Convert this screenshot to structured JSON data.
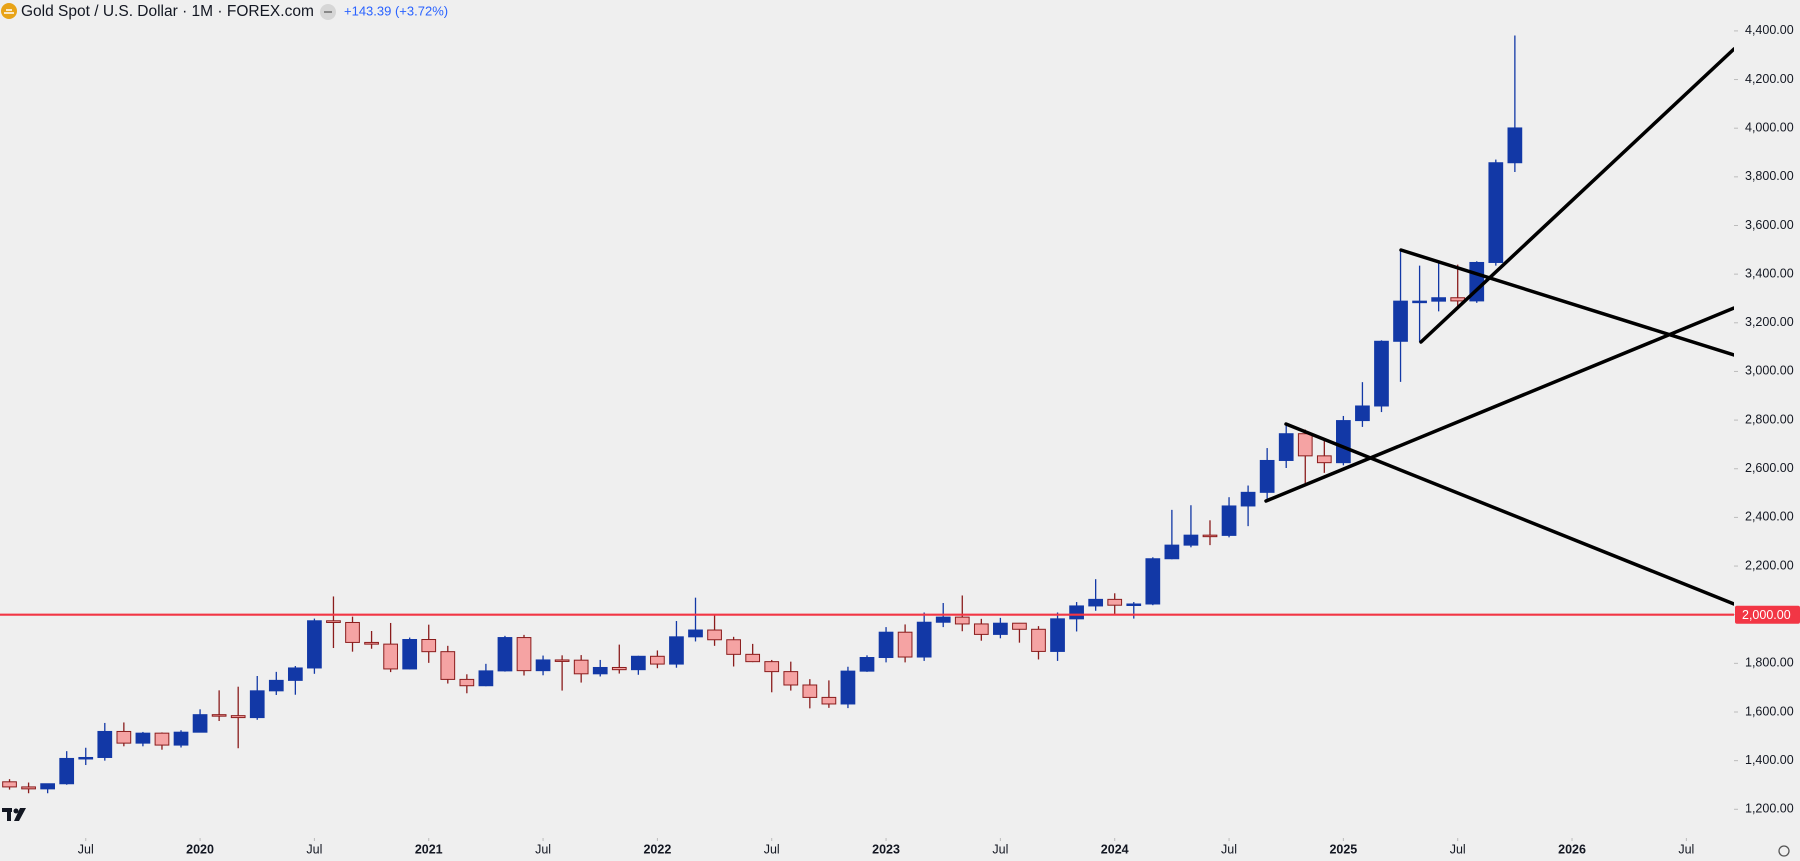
{
  "chart_data": {
    "type": "candlestick",
    "title": "Gold Spot / U.S. Dollar · 1M · FOREX.com",
    "change": "+143.39 (+3.72%)",
    "x": [
      "2019-03",
      "2019-04",
      "2019-05",
      "2019-06",
      "2019-07",
      "2019-08",
      "2019-09",
      "2019-10",
      "2019-11",
      "2019-12",
      "2020-01",
      "2020-02",
      "2020-03",
      "2020-04",
      "2020-05",
      "2020-06",
      "2020-07",
      "2020-08",
      "2020-09",
      "2020-10",
      "2020-11",
      "2020-12",
      "2021-01",
      "2021-02",
      "2021-03",
      "2021-04",
      "2021-05",
      "2021-06",
      "2021-07",
      "2021-08",
      "2021-09",
      "2021-10",
      "2021-11",
      "2021-12",
      "2022-01",
      "2022-02",
      "2022-03",
      "2022-04",
      "2022-05",
      "2022-06",
      "2022-07",
      "2022-08",
      "2022-09",
      "2022-10",
      "2022-11",
      "2022-12",
      "2023-01",
      "2023-02",
      "2023-03",
      "2023-04",
      "2023-05",
      "2023-06",
      "2023-07",
      "2023-08",
      "2023-09",
      "2023-10",
      "2023-11",
      "2023-12",
      "2024-01",
      "2024-02",
      "2024-03",
      "2024-04",
      "2024-05",
      "2024-06",
      "2024-07",
      "2024-08",
      "2024-09",
      "2024-10",
      "2024-11",
      "2024-12",
      "2025-01",
      "2025-02",
      "2025-03",
      "2025-04",
      "2025-05",
      "2025-06",
      "2025-07",
      "2025-08",
      "2025-09",
      "2025-10"
    ],
    "open": [
      1313,
      1292,
      1284,
      1305,
      1409,
      1413,
      1520,
      1472,
      1513,
      1464,
      1517,
      1589,
      1585,
      1577,
      1687,
      1730,
      1781,
      1975,
      1968,
      1886,
      1879,
      1777,
      1898,
      1848,
      1734,
      1708,
      1769,
      1906,
      1770,
      1814,
      1813,
      1757,
      1783,
      1774,
      1829,
      1797,
      1909,
      1937,
      1897,
      1837,
      1807,
      1766,
      1711,
      1660,
      1633,
      1768,
      1824,
      1928,
      1826,
      1969,
      1990,
      1962,
      1919,
      1965,
      1940,
      1849,
      1983,
      2036,
      2063,
      2039,
      2044,
      2230,
      2286,
      2327,
      2326,
      2447,
      2503,
      2634,
      2744,
      2653,
      2625,
      2798,
      2858,
      3124,
      3289,
      3289,
      3303,
      3290,
      3448,
      3858
    ],
    "high": [
      1324,
      1310,
      1306,
      1439,
      1453,
      1555,
      1557,
      1518,
      1516,
      1525,
      1611,
      1689,
      1704,
      1748,
      1765,
      1789,
      1984,
      2075,
      1992,
      1933,
      1966,
      1906,
      1959,
      1872,
      1755,
      1798,
      1913,
      1917,
      1832,
      1833,
      1834,
      1814,
      1877,
      1831,
      1853,
      1974,
      2070,
      1998,
      1909,
      1880,
      1814,
      1807,
      1735,
      1730,
      1786,
      1833,
      1949,
      1960,
      2009,
      2048,
      2079,
      1983,
      1987,
      1966,
      1953,
      2009,
      2052,
      2146,
      2088,
      2052,
      2236,
      2431,
      2450,
      2388,
      2483,
      2531,
      2685,
      2790,
      2761,
      2726,
      2817,
      2956,
      3128,
      3500,
      3435,
      3452,
      3439,
      3453,
      3871,
      4381
    ],
    "low": [
      1281,
      1266,
      1266,
      1301,
      1382,
      1400,
      1459,
      1459,
      1445,
      1454,
      1517,
      1563,
      1451,
      1568,
      1670,
      1671,
      1757,
      1863,
      1848,
      1860,
      1764,
      1775,
      1802,
      1717,
      1677,
      1706,
      1766,
      1750,
      1751,
      1688,
      1721,
      1746,
      1758,
      1753,
      1780,
      1782,
      1890,
      1872,
      1787,
      1805,
      1681,
      1688,
      1615,
      1617,
      1616,
      1765,
      1804,
      1804,
      1810,
      1949,
      1932,
      1893,
      1903,
      1885,
      1816,
      1810,
      1931,
      2016,
      2001,
      1984,
      2039,
      2228,
      2277,
      2286,
      2318,
      2364,
      2471,
      2603,
      2536,
      2583,
      2614,
      2772,
      2833,
      2957,
      3121,
      3247,
      3268,
      3282,
      3435,
      3820
    ],
    "close": [
      1292,
      1284,
      1305,
      1409,
      1413,
      1520,
      1472,
      1513,
      1464,
      1517,
      1589,
      1585,
      1577,
      1687,
      1730,
      1781,
      1975,
      1968,
      1886,
      1879,
      1777,
      1898,
      1848,
      1734,
      1708,
      1769,
      1906,
      1770,
      1814,
      1813,
      1757,
      1783,
      1774,
      1829,
      1797,
      1909,
      1937,
      1897,
      1837,
      1807,
      1766,
      1711,
      1660,
      1633,
      1768,
      1824,
      1928,
      1826,
      1969,
      1990,
      1962,
      1919,
      1965,
      1940,
      1849,
      1983,
      2036,
      2063,
      2039,
      2044,
      2230,
      2286,
      2327,
      2326,
      2447,
      2503,
      2634,
      2744,
      2653,
      2625,
      2798,
      2858,
      3124,
      3289,
      3289,
      3303,
      3290,
      3448,
      3858,
      4001
    ],
    "up_color": "#1238a6",
    "down_color": "#f5a3a3",
    "down_border": "#8a1c1c",
    "xlim": [
      "2019-03",
      "2026-09"
    ],
    "xticks": [
      {
        "value": "2019-07",
        "label": "Jul"
      },
      {
        "value": "2020-01",
        "label": "2020"
      },
      {
        "value": "2020-07",
        "label": "Jul"
      },
      {
        "value": "2021-01",
        "label": "2021"
      },
      {
        "value": "2021-07",
        "label": "Jul"
      },
      {
        "value": "2022-01",
        "label": "2022"
      },
      {
        "value": "2022-07",
        "label": "Jul"
      },
      {
        "value": "2023-01",
        "label": "2023"
      },
      {
        "value": "2023-07",
        "label": "Jul"
      },
      {
        "value": "2024-01",
        "label": "2024"
      },
      {
        "value": "2024-07",
        "label": "Jul"
      },
      {
        "value": "2025-01",
        "label": "2025"
      },
      {
        "value": "2025-07",
        "label": "Jul"
      },
      {
        "value": "2026-01",
        "label": "2026"
      },
      {
        "value": "2026-07",
        "label": "Jul"
      }
    ],
    "ylim": [
      1082,
      4527
    ],
    "yticks": [
      {
        "value": 1200,
        "label": "1,200.00"
      },
      {
        "value": 1400,
        "label": "1,400.00"
      },
      {
        "value": 1600,
        "label": "1,600.00"
      },
      {
        "value": 1800,
        "label": "1,800.00"
      },
      {
        "value": 2000,
        "label": "2,000.00"
      },
      {
        "value": 2200,
        "label": "2,200.00"
      },
      {
        "value": 2400,
        "label": "2,400.00"
      },
      {
        "value": 2600,
        "label": "2,600.00"
      },
      {
        "value": 2800,
        "label": "2,800.00"
      },
      {
        "value": 3000,
        "label": "3,000.00"
      },
      {
        "value": 3200,
        "label": "3,200.00"
      },
      {
        "value": 3400,
        "label": "3,400.00"
      },
      {
        "value": 3600,
        "label": "3,600.00"
      },
      {
        "value": 3800,
        "label": "3,800.00"
      },
      {
        "value": 4000,
        "label": "4,000.00"
      },
      {
        "value": 4200,
        "label": "4,200.00"
      },
      {
        "value": 4400,
        "label": "4,400.00"
      }
    ],
    "hline": {
      "value": 2000,
      "label": "2,000.00",
      "color": "#f23645"
    }
  }
}
